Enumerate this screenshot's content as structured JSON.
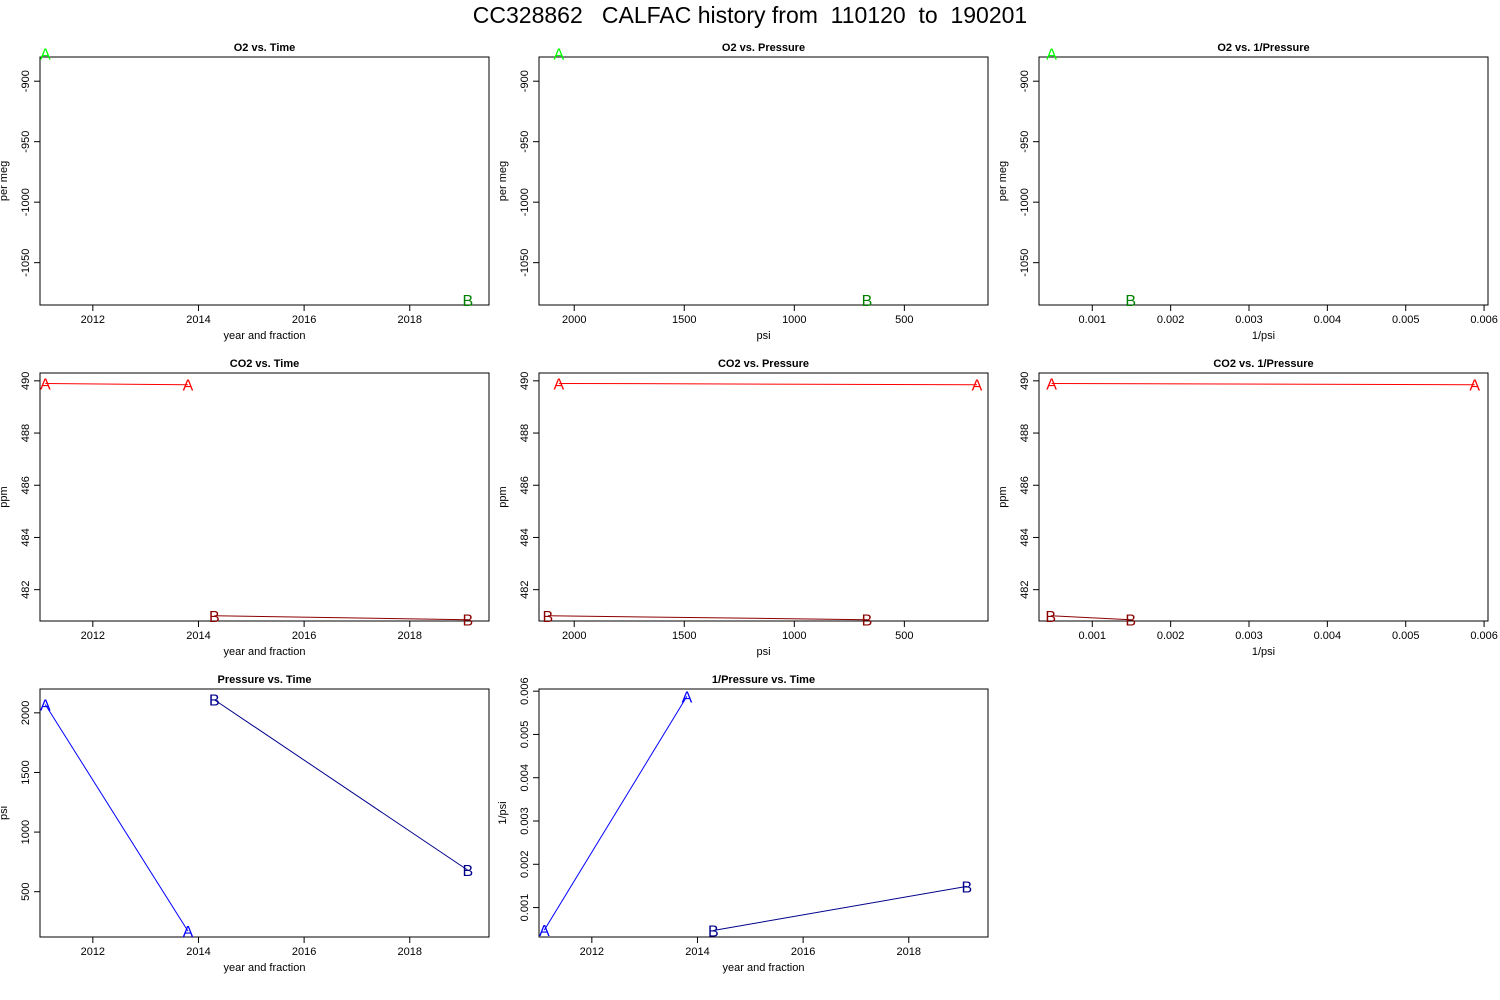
{
  "title": "CC328862   CALFAC history from  110120  to  190201",
  "colors": {
    "o2_A": "#00ff00",
    "o2_B": "#008000",
    "co2_A": "#ff0000",
    "co2_B": "#8b0000",
    "p_A": "#0000ff",
    "p_B": "#00008b"
  },
  "chart_data": [
    {
      "id": "o2-vs-time",
      "type": "line",
      "title": "O2 vs. Time",
      "xlabel": "year and fraction",
      "ylabel": "per meg",
      "xlim": [
        2011.0,
        2019.5
      ],
      "ylim": [
        -1085,
        -880
      ],
      "xticks": [
        2012,
        2014,
        2016,
        2018
      ],
      "xtick_labels": [
        "2012",
        "2014",
        "2016",
        "2018"
      ],
      "yticks": [
        -900,
        -950,
        -1000,
        -1050
      ],
      "ytick_labels": [
        "-900",
        "-950",
        "-1000",
        "-1050"
      ],
      "series": [
        {
          "label": "A",
          "color_key": "o2_A",
          "x": [
            2011.1
          ],
          "y": [
            -877
          ]
        },
        {
          "label": "B",
          "color_key": "o2_B",
          "x": [
            2019.1
          ],
          "y": [
            -1081
          ]
        }
      ]
    },
    {
      "id": "o2-vs-pressure",
      "type": "line",
      "title": "O2 vs. Pressure",
      "xlabel": "psi",
      "ylabel": "per meg",
      "xlim": [
        2160,
        120
      ],
      "ylim": [
        -1085,
        -880
      ],
      "xticks": [
        2000,
        1500,
        1000,
        500
      ],
      "xtick_labels": [
        "2000",
        "1500",
        "1000",
        "500"
      ],
      "yticks": [
        -900,
        -950,
        -1000,
        -1050
      ],
      "ytick_labels": [
        "-900",
        "-950",
        "-1000",
        "-1050"
      ],
      "series": [
        {
          "label": "A",
          "color_key": "o2_A",
          "x": [
            2070
          ],
          "y": [
            -877
          ]
        },
        {
          "label": "B",
          "color_key": "o2_B",
          "x": [
            670
          ],
          "y": [
            -1081
          ]
        }
      ]
    },
    {
      "id": "o2-vs-inv-pressure",
      "type": "line",
      "title": "O2 vs. 1/Pressure",
      "xlabel": "1/psi",
      "ylabel": "per meg",
      "xlim": [
        0.00032,
        0.00605
      ],
      "ylim": [
        -1085,
        -880
      ],
      "xticks": [
        0.001,
        0.002,
        0.003,
        0.004,
        0.005,
        0.006
      ],
      "xtick_labels": [
        "0.001",
        "0.002",
        "0.003",
        "0.004",
        "0.005",
        "0.006"
      ],
      "yticks": [
        -900,
        -950,
        -1000,
        -1050
      ],
      "ytick_labels": [
        "-900",
        "-950",
        "-1000",
        "-1050"
      ],
      "series": [
        {
          "label": "A",
          "color_key": "o2_A",
          "x": [
            0.00048
          ],
          "y": [
            -877
          ]
        },
        {
          "label": "B",
          "color_key": "o2_B",
          "x": [
            0.00149
          ],
          "y": [
            -1081
          ]
        }
      ]
    },
    {
      "id": "co2-vs-time",
      "type": "line",
      "title": "CO2 vs. Time",
      "xlabel": "year and fraction",
      "ylabel": "ppm",
      "xlim": [
        2011.0,
        2019.5
      ],
      "ylim": [
        480.8,
        490.3
      ],
      "xticks": [
        2012,
        2014,
        2016,
        2018
      ],
      "xtick_labels": [
        "2012",
        "2014",
        "2016",
        "2018"
      ],
      "yticks": [
        482,
        484,
        486,
        488,
        490
      ],
      "ytick_labels": [
        "482",
        "484",
        "486",
        "488",
        "490"
      ],
      "series": [
        {
          "label": "A",
          "color_key": "co2_A",
          "x": [
            2011.1,
            2013.8
          ],
          "y": [
            489.9,
            489.85
          ]
        },
        {
          "label": "B",
          "color_key": "co2_B",
          "x": [
            2014.3,
            2019.1
          ],
          "y": [
            481.0,
            480.85
          ]
        }
      ]
    },
    {
      "id": "co2-vs-pressure",
      "type": "line",
      "title": "CO2 vs. Pressure",
      "xlabel": "psi",
      "ylabel": "ppm",
      "xlim": [
        2160,
        120
      ],
      "ylim": [
        480.8,
        490.3
      ],
      "xticks": [
        2000,
        1500,
        1000,
        500
      ],
      "xtick_labels": [
        "2000",
        "1500",
        "1000",
        "500"
      ],
      "yticks": [
        482,
        484,
        486,
        488,
        490
      ],
      "ytick_labels": [
        "482",
        "484",
        "486",
        "488",
        "490"
      ],
      "series": [
        {
          "label": "A",
          "color_key": "co2_A",
          "x": [
            2070,
            170
          ],
          "y": [
            489.9,
            489.85
          ]
        },
        {
          "label": "B",
          "color_key": "co2_B",
          "x": [
            2120,
            670
          ],
          "y": [
            481.0,
            480.85
          ]
        }
      ]
    },
    {
      "id": "co2-vs-inv-pressure",
      "type": "line",
      "title": "CO2 vs. 1/Pressure",
      "xlabel": "1/psi",
      "ylabel": "ppm",
      "xlim": [
        0.00032,
        0.00605
      ],
      "ylim": [
        480.8,
        490.3
      ],
      "xticks": [
        0.001,
        0.002,
        0.003,
        0.004,
        0.005,
        0.006
      ],
      "xtick_labels": [
        "0.001",
        "0.002",
        "0.003",
        "0.004",
        "0.005",
        "0.006"
      ],
      "yticks": [
        482,
        484,
        486,
        488,
        490
      ],
      "ytick_labels": [
        "482",
        "484",
        "486",
        "488",
        "490"
      ],
      "series": [
        {
          "label": "A",
          "color_key": "co2_A",
          "x": [
            0.00048,
            0.00588
          ],
          "y": [
            489.9,
            489.85
          ]
        },
        {
          "label": "B",
          "color_key": "co2_B",
          "x": [
            0.00047,
            0.00149
          ],
          "y": [
            481.0,
            480.85
          ]
        }
      ]
    },
    {
      "id": "pressure-vs-time",
      "type": "line",
      "title": "Pressure vs. Time",
      "xlabel": "year and fraction",
      "ylabel": "psi",
      "xlim": [
        2011.0,
        2019.5
      ],
      "ylim": [
        120,
        2200
      ],
      "xticks": [
        2012,
        2014,
        2016,
        2018
      ],
      "xtick_labels": [
        "2012",
        "2014",
        "2016",
        "2018"
      ],
      "yticks": [
        500,
        1000,
        1500,
        2000
      ],
      "ytick_labels": [
        "500",
        "1000",
        "1500",
        "2000"
      ],
      "series": [
        {
          "label": "A",
          "color_key": "p_A",
          "x": [
            2011.1,
            2013.8
          ],
          "y": [
            2070,
            170
          ]
        },
        {
          "label": "B",
          "color_key": "p_B",
          "x": [
            2014.3,
            2019.1
          ],
          "y": [
            2110,
            680
          ]
        }
      ]
    },
    {
      "id": "inv-pressure-vs-time",
      "type": "line",
      "title": "1/Pressure vs. Time",
      "xlabel": "year and fraction",
      "ylabel": "1/psi",
      "xlim": [
        2011.0,
        2019.5
      ],
      "ylim": [
        0.00032,
        0.00605
      ],
      "xticks": [
        2012,
        2014,
        2016,
        2018
      ],
      "xtick_labels": [
        "2012",
        "2014",
        "2016",
        "2018"
      ],
      "yticks": [
        0.001,
        0.002,
        0.003,
        0.004,
        0.005,
        0.006
      ],
      "ytick_labels": [
        "0.001",
        "0.002",
        "0.003",
        "0.004",
        "0.005",
        "0.006"
      ],
      "series": [
        {
          "label": "A",
          "color_key": "p_A",
          "x": [
            2011.1,
            2013.8
          ],
          "y": [
            0.00048,
            0.00588
          ]
        },
        {
          "label": "B",
          "color_key": "p_B",
          "x": [
            2014.3,
            2019.1
          ],
          "y": [
            0.00047,
            0.00149
          ]
        }
      ]
    }
  ]
}
